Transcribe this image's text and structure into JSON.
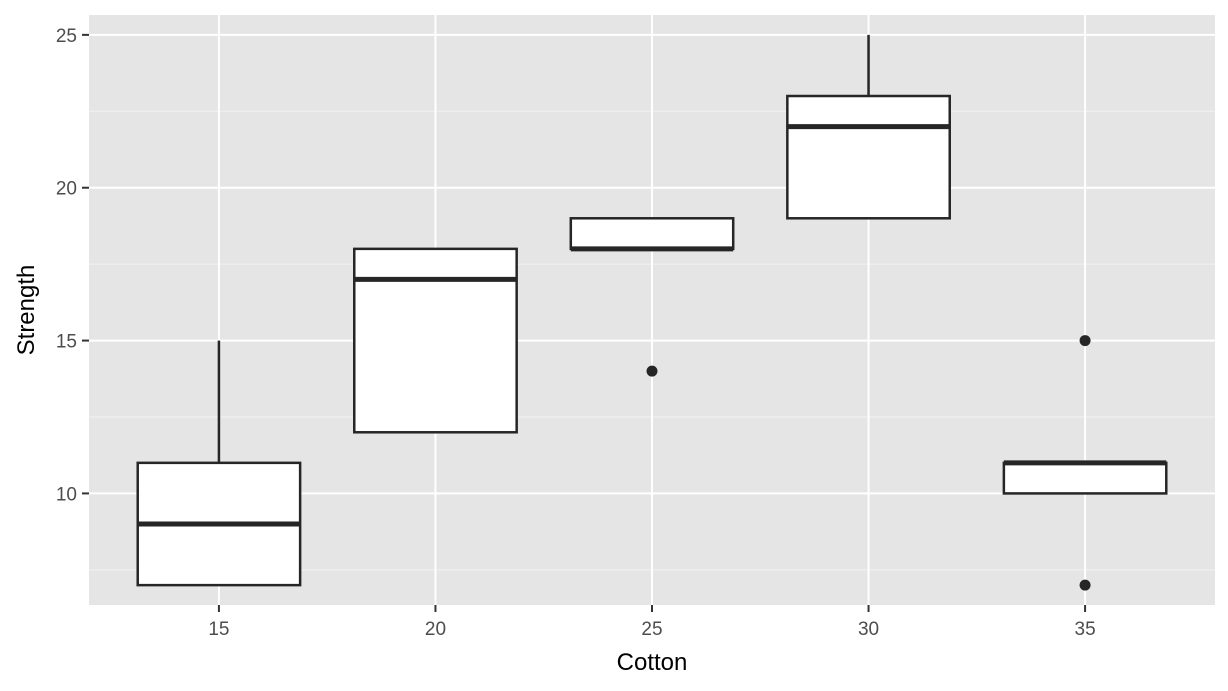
{
  "chart_data": {
    "type": "boxplot",
    "xlabel": "Cotton",
    "ylabel": "Strength",
    "categories": [
      "15",
      "20",
      "25",
      "30",
      "35"
    ],
    "boxes": [
      {
        "category": "15",
        "whisker_low": 7,
        "q1": 7,
        "median": 9,
        "q3": 11,
        "whisker_high": 15,
        "outliers": []
      },
      {
        "category": "20",
        "whisker_low": 12,
        "q1": 12,
        "median": 17,
        "q3": 18,
        "whisker_high": 18,
        "outliers": []
      },
      {
        "category": "25",
        "whisker_low": 18,
        "q1": 18,
        "median": 18,
        "q3": 19,
        "whisker_high": 19,
        "outliers": [
          14
        ]
      },
      {
        "category": "30",
        "whisker_low": 19,
        "q1": 19,
        "median": 22,
        "q3": 23,
        "whisker_high": 25,
        "outliers": []
      },
      {
        "category": "35",
        "whisker_low": 10,
        "q1": 10,
        "median": 11,
        "q3": 11,
        "whisker_high": 11,
        "outliers": [
          15,
          7
        ]
      }
    ],
    "y_ticks": [
      10,
      15,
      20,
      25
    ],
    "ylim": [
      6.35,
      25.65
    ],
    "grid": true,
    "colors": {
      "panel": "#e5e5e5",
      "grid_major": "#ffffff",
      "grid_minor": "#f2f2f2",
      "box_fill": "#ffffff",
      "box_line": "#262626",
      "outlier": "#262626"
    }
  }
}
